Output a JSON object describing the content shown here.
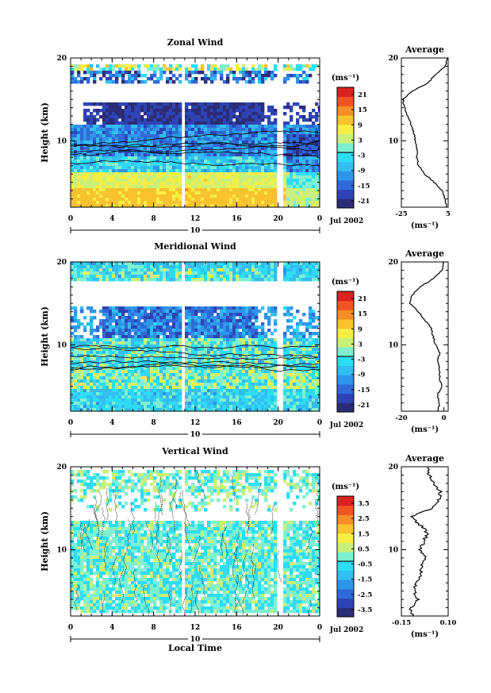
{
  "chart_data": [
    {
      "type": "heatmap",
      "title": "Zonal Wind",
      "ylabel": "Height (km)",
      "xlabel": "",
      "x_range": [
        0,
        24
      ],
      "y_range": [
        2,
        20
      ],
      "x_ticks": [
        "0",
        "4",
        "8",
        "12",
        "16",
        "20",
        "0"
      ],
      "y_ticks": [
        "20",
        "10"
      ],
      "date_day": "10",
      "date_label": "Jul 2002",
      "colorbar": {
        "unit": "(ms⁻¹)",
        "ticks": [
          "21",
          "15",
          "9",
          "3",
          "-3",
          "-9",
          "-15",
          "-21"
        ],
        "range": [
          -21,
          21
        ]
      },
      "profile": {
        "title": "Average",
        "xlabel": "(ms⁻¹)",
        "x_ticks": [
          "-25",
          "5"
        ],
        "x_range": [
          -25,
          5
        ],
        "y_ticks": [
          "20",
          "10"
        ],
        "points": [
          [
            4,
            2
          ],
          [
            3,
            3
          ],
          [
            1,
            4
          ],
          [
            -4,
            5
          ],
          [
            -10,
            6
          ],
          [
            -14,
            7
          ],
          [
            -15,
            8
          ],
          [
            -15,
            9
          ],
          [
            -16,
            10
          ],
          [
            -17,
            11
          ],
          [
            -19,
            12
          ],
          [
            -21,
            13
          ],
          [
            -23,
            14
          ],
          [
            -24,
            15
          ],
          [
            -18,
            16
          ],
          [
            -8,
            17
          ],
          [
            -3,
            18
          ],
          [
            3,
            19
          ],
          [
            5,
            20
          ]
        ]
      }
    },
    {
      "type": "heatmap",
      "title": "Meridional Wind",
      "ylabel": "Height (km)",
      "xlabel": "",
      "x_range": [
        0,
        24
      ],
      "y_range": [
        2,
        20
      ],
      "x_ticks": [
        "0",
        "4",
        "8",
        "12",
        "16",
        "20",
        "0"
      ],
      "y_ticks": [
        "20",
        "10"
      ],
      "date_day": "10",
      "date_label": "Jul 2002",
      "colorbar": {
        "unit": "(ms⁻¹)",
        "ticks": [
          "21",
          "15",
          "9",
          "3",
          "-3",
          "-9",
          "-15",
          "-21"
        ],
        "range": [
          -21,
          21
        ]
      },
      "profile": {
        "title": "Average",
        "xlabel": "(ms⁻¹)",
        "x_ticks": [
          "-20",
          "0"
        ],
        "x_range": [
          -20,
          2
        ],
        "y_ticks": [
          "20",
          "10"
        ],
        "points": [
          [
            -3,
            2
          ],
          [
            -2,
            3
          ],
          [
            -3,
            4
          ],
          [
            -1,
            5
          ],
          [
            -2,
            6
          ],
          [
            -2,
            7
          ],
          [
            -3,
            8
          ],
          [
            -2,
            9
          ],
          [
            -4,
            10
          ],
          [
            -5,
            11
          ],
          [
            -6,
            12
          ],
          [
            -9,
            13
          ],
          [
            -12,
            14
          ],
          [
            -16,
            15
          ],
          [
            -15,
            16
          ],
          [
            -11,
            17
          ],
          [
            -5,
            18
          ],
          [
            -1,
            19
          ],
          [
            0,
            20
          ]
        ]
      }
    },
    {
      "type": "heatmap",
      "title": "Vertical Wind",
      "ylabel": "Height (km)",
      "xlabel": "Local Time",
      "x_range": [
        0,
        24
      ],
      "y_range": [
        2,
        20
      ],
      "x_ticks": [
        "0",
        "4",
        "8",
        "12",
        "16",
        "20",
        "0"
      ],
      "y_ticks": [
        "20",
        "10"
      ],
      "date_day": "10",
      "date_label": "Jul 2002",
      "colorbar": {
        "unit": "(ms⁻¹)",
        "ticks": [
          "3.5",
          "2.5",
          "1.5",
          "0.5",
          "-0.5",
          "-1.5",
          "-2.5",
          "-3.5"
        ],
        "range": [
          -3.5,
          3.5
        ]
      },
      "profile": {
        "title": "Average",
        "xlabel": "(ms⁻¹)",
        "x_ticks": [
          "-0.15",
          "0.10"
        ],
        "x_range": [
          -0.15,
          0.1
        ],
        "y_ticks": [
          "20",
          "10"
        ],
        "points": [
          [
            -0.09,
            2
          ],
          [
            -0.1,
            3
          ],
          [
            -0.06,
            4
          ],
          [
            -0.08,
            5
          ],
          [
            -0.07,
            6
          ],
          [
            -0.05,
            7
          ],
          [
            -0.04,
            8
          ],
          [
            -0.02,
            9
          ],
          [
            -0.05,
            10
          ],
          [
            -0.03,
            11
          ],
          [
            -0.01,
            12
          ],
          [
            -0.05,
            13
          ],
          [
            -0.1,
            14
          ],
          [
            0.02,
            15
          ],
          [
            0.05,
            16
          ],
          [
            0.06,
            17
          ],
          [
            0.02,
            18
          ],
          [
            0.0,
            19
          ],
          [
            -0.01,
            20
          ]
        ]
      }
    }
  ]
}
